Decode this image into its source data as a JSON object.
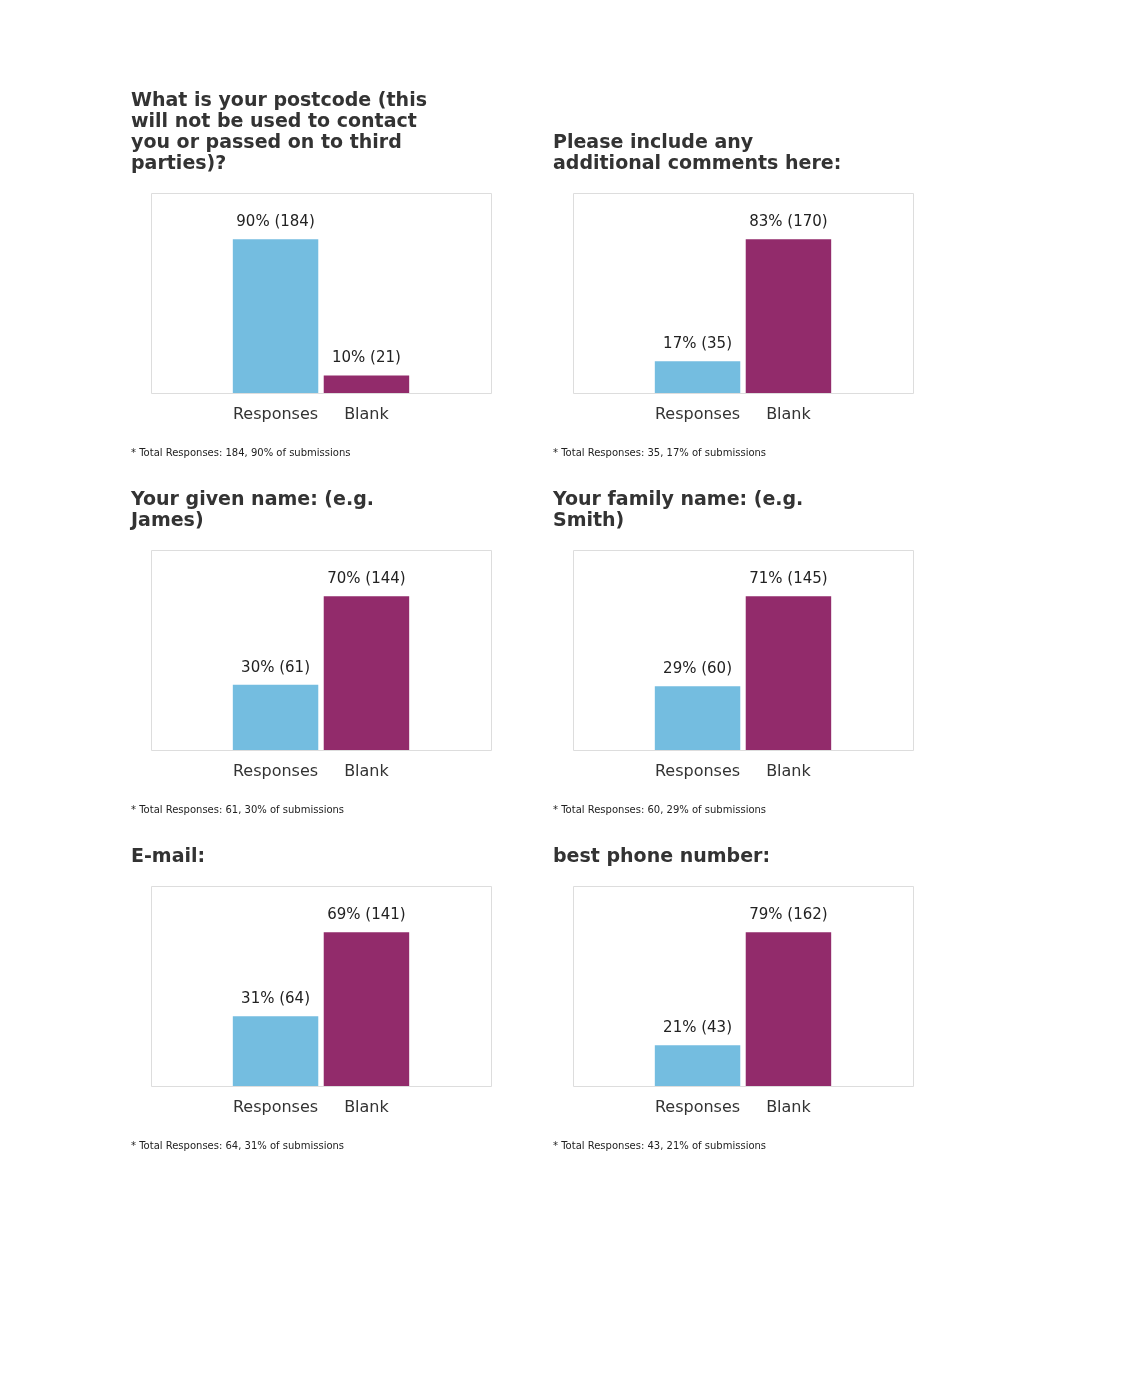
{
  "chart_data": [
    {
      "type": "bar",
      "title": "What is your postcode (this will not be used to contact you or passed on to third parties)?",
      "categories": [
        "Responses",
        "Blank"
      ],
      "values": [
        184,
        21
      ],
      "colors": [
        "#74bde0",
        "#922b6b"
      ],
      "value_labels": [
        "90% (184)",
        "10% (21)"
      ],
      "annotations": [
        "* Total Responses: 184, 90% of submissions"
      ]
    },
    {
      "type": "bar",
      "title": "Please include any additional comments here:",
      "categories": [
        "Responses",
        "Blank"
      ],
      "values": [
        35,
        170
      ],
      "colors": [
        "#74bde0",
        "#922b6b"
      ],
      "value_labels": [
        "17% (35)",
        "83% (170)"
      ],
      "annotations": [
        "* Total Responses: 35, 17% of submissions"
      ]
    },
    {
      "type": "bar",
      "title": "Your given name: (e.g. James)",
      "categories": [
        "Responses",
        "Blank"
      ],
      "values": [
        61,
        144
      ],
      "colors": [
        "#74bde0",
        "#922b6b"
      ],
      "value_labels": [
        "30% (61)",
        "70% (144)"
      ],
      "annotations": [
        "* Total Responses: 61, 30% of submissions"
      ]
    },
    {
      "type": "bar",
      "title": "Your family name: (e.g. Smith)",
      "categories": [
        "Responses",
        "Blank"
      ],
      "values": [
        60,
        145
      ],
      "colors": [
        "#74bde0",
        "#922b6b"
      ],
      "value_labels": [
        "29% (60)",
        "71% (145)"
      ],
      "annotations": [
        "* Total Responses: 60, 29% of submissions"
      ]
    },
    {
      "type": "bar",
      "title": "E-mail:",
      "categories": [
        "Responses",
        "Blank"
      ],
      "values": [
        64,
        141
      ],
      "colors": [
        "#74bde0",
        "#922b6b"
      ],
      "value_labels": [
        "31% (64)",
        "69% (141)"
      ],
      "annotations": [
        "* Total Responses: 64, 31% of submissions"
      ]
    },
    {
      "type": "bar",
      "title": "best phone number:",
      "categories": [
        "Responses",
        "Blank"
      ],
      "values": [
        43,
        162
      ],
      "colors": [
        "#74bde0",
        "#922b6b"
      ],
      "value_labels": [
        "21% (43)",
        "79% (162)"
      ],
      "annotations": [
        "* Total Responses: 43, 21% of submissions"
      ]
    }
  ]
}
